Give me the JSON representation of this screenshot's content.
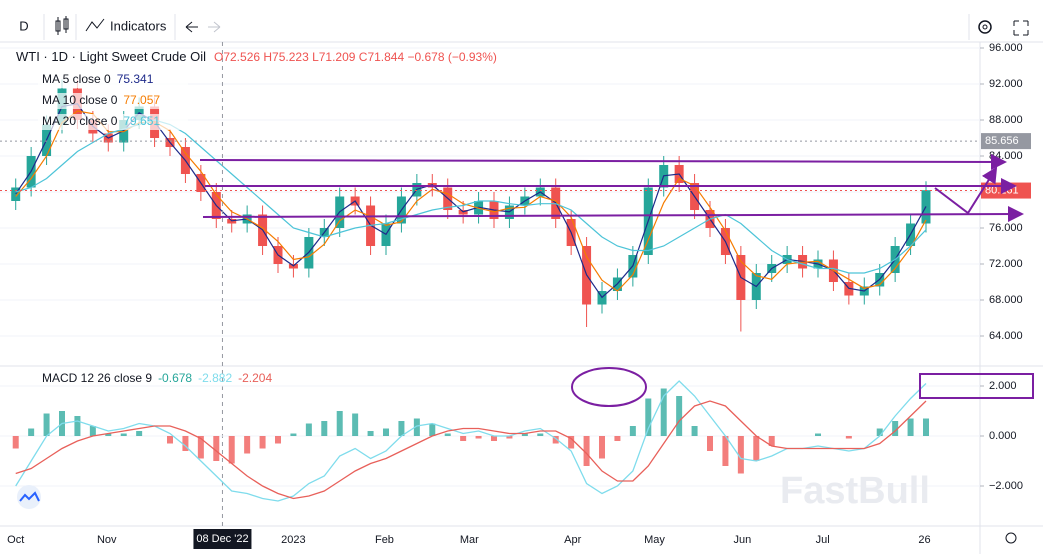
{
  "toolbar": {
    "interval": "D",
    "indicators": "Indicators"
  },
  "watermark": "FastBull",
  "chart_data": [
    {
      "type": "candlestick",
      "title": "WTI · 1D · Light Sweet Crude Oil",
      "ohlc_label": "O72.526 H75.223 L71.209 C71.844 −0.678 (−0.93%)",
      "up_color": "#26a69a",
      "down_color": "#ef5350",
      "x": [
        0,
        1,
        2,
        3,
        4,
        5,
        6,
        7,
        8,
        9,
        10,
        11,
        12,
        13,
        14,
        15,
        16,
        17,
        18,
        19,
        20,
        21,
        22,
        23,
        24,
        25,
        26,
        27,
        28,
        29,
        30,
        31,
        32,
        33,
        34,
        35,
        36,
        37,
        38,
        39,
        40,
        41,
        42,
        43,
        44,
        45,
        46,
        47,
        48,
        49,
        50,
        51,
        52,
        53,
        54,
        55,
        56,
        57,
        58,
        59
      ],
      "open": [
        79,
        80.5,
        84,
        87.5,
        91.5,
        88,
        86.5,
        85.5,
        88,
        89.5,
        86,
        85,
        82,
        80,
        77,
        76.5,
        77.5,
        74,
        72,
        71.5,
        75,
        76,
        79.5,
        78.5,
        74,
        76.5,
        79.5,
        81,
        80.5,
        78,
        77.5,
        79,
        77,
        78.5,
        79.5,
        80.5,
        77,
        74,
        67.5,
        69,
        70.5,
        73,
        80.5,
        83,
        81,
        78,
        76,
        73,
        68,
        71,
        72,
        73,
        71.5,
        72.5,
        70,
        68.5,
        69.5,
        71,
        74,
        76.5
      ],
      "high": [
        81.5,
        85,
        88.5,
        92.5,
        92.5,
        89,
        87.5,
        89,
        90.5,
        90.5,
        87,
        86,
        83,
        81,
        78,
        78.5,
        78.5,
        75,
        73,
        76,
        77,
        80.5,
        80.5,
        79.5,
        77.5,
        80.5,
        82,
        82,
        81.5,
        79,
        80,
        80,
        79.5,
        80.5,
        81.5,
        81.5,
        78,
        75,
        70,
        71.5,
        74,
        81.5,
        84,
        84,
        82,
        79,
        77,
        74,
        72,
        73,
        74,
        74,
        73.5,
        73.5,
        71,
        70.5,
        72,
        75,
        77.5,
        81.2
      ],
      "low": [
        78,
        79.5,
        83,
        86.5,
        87,
        85.5,
        84.5,
        84.5,
        87,
        85,
        84,
        81,
        79,
        76,
        75.5,
        75.5,
        73,
        71,
        70.5,
        70.5,
        74,
        75,
        77.5,
        73,
        73,
        75.5,
        78.5,
        79.5,
        77,
        76.5,
        76.5,
        76,
        76,
        77.5,
        78.5,
        76,
        73,
        65,
        66.5,
        68,
        69.5,
        72,
        79.5,
        80,
        77,
        75,
        72,
        64.5,
        67,
        70,
        71,
        70.5,
        70.5,
        69,
        67.5,
        67.5,
        68.5,
        70,
        73,
        75.5
      ],
      "close": [
        80.5,
        84,
        87.5,
        91.5,
        88,
        86.5,
        85.5,
        88,
        89.5,
        86,
        85,
        82,
        80,
        77,
        76.5,
        77.5,
        74,
        72,
        71.5,
        75,
        76,
        79.5,
        78.5,
        74,
        76.5,
        79.5,
        81,
        80.5,
        78,
        77.5,
        79,
        77,
        78.5,
        79.5,
        80.5,
        77,
        74,
        67.5,
        69,
        70.5,
        73,
        80.5,
        83,
        81,
        78,
        76,
        73,
        68,
        71,
        72,
        73,
        71.5,
        72.5,
        70,
        68.5,
        69.5,
        71,
        74,
        76.5,
        80.2
      ],
      "series": [
        {
          "name": "MA 5 close 0",
          "color": "#1e2a8a",
          "crosshair_value": 75.341,
          "values": [
            79.8,
            82.3,
            85.8,
            89.5,
            89.8,
            87.3,
            86,
            86.8,
            88.8,
            87.8,
            85.5,
            83.5,
            81,
            78.5,
            76.8,
            77,
            75.8,
            73,
            71.8,
            73.3,
            75.5,
            77.8,
            79,
            76.3,
            75.3,
            78,
            80.3,
            80.8,
            79.3,
            77.8,
            78.3,
            78,
            77.8,
            79,
            80,
            78.8,
            75.5,
            70.8,
            68.3,
            69.8,
            71.8,
            76.8,
            81.8,
            82,
            79.5,
            77,
            74.5,
            70.5,
            69.5,
            71.5,
            72.5,
            72.3,
            72,
            71.3,
            69.3,
            69,
            70.3,
            72.5,
            75.3,
            78.4
          ]
        },
        {
          "name": "MA 10 close 0",
          "color": "#f57c00",
          "crosshair_value": 77.057,
          "values": [
            79.5,
            81.5,
            84,
            87.7,
            89,
            88.7,
            86.7,
            86.7,
            87.7,
            87.8,
            86.8,
            84.3,
            82.3,
            79.7,
            77.8,
            77,
            76,
            74.5,
            72.5,
            72.8,
            74.2,
            76.8,
            78,
            77.3,
            76.3,
            76.7,
            79,
            80.3,
            79.8,
            78.7,
            78.2,
            77.8,
            78.2,
            78.3,
            79.5,
            79,
            77.2,
            72.8,
            70.2,
            69,
            70.8,
            74.7,
            78.8,
            81.5,
            80.7,
            78.3,
            75.7,
            72.3,
            70.7,
            70.3,
            72,
            72.2,
            72.3,
            71.3,
            70.3,
            69.3,
            69.7,
            71.5,
            73.8,
            76.9
          ]
        },
        {
          "name": "MA 20 close 0",
          "color": "#4dc4d8",
          "crosshair_value": 79.651,
          "values": [
            80,
            80.5,
            81.5,
            83,
            84.5,
            85.5,
            86.5,
            87,
            87.5,
            88,
            87.5,
            86.5,
            85,
            83.5,
            82,
            80.5,
            79,
            77.5,
            76,
            75.5,
            75,
            75.5,
            76,
            76.3,
            76.5,
            77,
            77.5,
            78,
            78.3,
            78.5,
            79,
            79,
            78.7,
            78.5,
            78.7,
            78.7,
            78,
            76.5,
            75,
            74,
            73.5,
            73.5,
            74,
            75,
            76,
            77,
            77.5,
            76.5,
            75,
            73.5,
            72.5,
            72,
            71.5,
            71.5,
            71,
            71,
            71.5,
            72.5,
            74,
            75.8
          ]
        }
      ],
      "price_lines": [
        {
          "value": 85.656,
          "color": "#9598a1"
        },
        {
          "value": 80.161,
          "color": "#ef5350"
        }
      ],
      "crosshair": {
        "x": 13.4,
        "label": "08 Dec '22"
      },
      "xlim": [
        -0.5,
        62.5
      ],
      "xticks": [
        {
          "value": 0,
          "label": "Oct"
        },
        {
          "value": 5.9,
          "label": "Nov"
        },
        {
          "value": 18,
          "label": "2023"
        },
        {
          "value": 23.9,
          "label": "Feb"
        },
        {
          "value": 29.4,
          "label": "Mar"
        },
        {
          "value": 36.1,
          "label": "Apr"
        },
        {
          "value": 41.4,
          "label": "May"
        },
        {
          "value": 47.1,
          "label": "Jun"
        },
        {
          "value": 52.3,
          "label": "Jul"
        },
        {
          "value": 58.9,
          "label": "26"
        }
      ],
      "ylim": [
        60.778,
        96.667
      ],
      "yticks": [
        {
          "value": 64,
          "label": "64.000"
        },
        {
          "value": 68,
          "label": "68.000"
        },
        {
          "value": 72,
          "label": "72.000"
        },
        {
          "value": 76,
          "label": "76.000"
        },
        {
          "value": 80,
          "label": "80.000"
        },
        {
          "value": 84,
          "label": "84.000"
        },
        {
          "value": 88,
          "label": "88.000"
        },
        {
          "value": 92,
          "label": "92.000"
        },
        {
          "value": 96,
          "label": "96.000"
        }
      ],
      "grid": true
    },
    {
      "type": "macd",
      "title": "MACD 12 26 close 9",
      "histogram": {
        "crosshair_value": -0.678,
        "up_color": "#26a69a",
        "down_color": "#ef5350",
        "values": [
          -0.5,
          0.3,
          0.9,
          1,
          0.8,
          0.4,
          0.1,
          0.1,
          0.2,
          0,
          -0.3,
          -0.6,
          -0.9,
          -1,
          -1.1,
          -0.7,
          -0.5,
          -0.3,
          0.1,
          0.5,
          0.6,
          1,
          0.9,
          0.2,
          0.3,
          0.6,
          0.7,
          0.5,
          0.1,
          -0.2,
          -0.1,
          -0.2,
          -0.1,
          0.1,
          0.1,
          -0.3,
          -0.5,
          -1.2,
          -0.9,
          -0.2,
          0.4,
          1.5,
          1.9,
          1.6,
          0.4,
          -0.6,
          -1.2,
          -1.5,
          -1,
          -0.4,
          0,
          0,
          0.1,
          0,
          -0.1,
          0,
          0.3,
          0.6,
          0.7,
          0.7
        ]
      },
      "series": [
        {
          "color": "#7fdcec",
          "crosshair_value": -2.882,
          "values": [
            -2,
            -1,
            0,
            0.5,
            0.6,
            0.4,
            0.2,
            0.3,
            0.5,
            0.4,
            0.1,
            -0.4,
            -1,
            -1.6,
            -2.2,
            -2.3,
            -2.5,
            -2.6,
            -2.4,
            -1.9,
            -1.6,
            -0.8,
            -0.5,
            -0.9,
            -0.6,
            0,
            0.4,
            0.5,
            0.3,
            0.1,
            0.2,
            0,
            0,
            0.2,
            0.3,
            -0.1,
            -0.6,
            -1.9,
            -2.3,
            -2,
            -1.4,
            0.3,
            1.6,
            2.2,
            1.6,
            0.8,
            0,
            -0.9,
            -1,
            -0.8,
            -0.5,
            -0.5,
            -0.4,
            -0.5,
            -0.6,
            -0.5,
            0,
            0.8,
            1.5,
            2.1
          ]
        },
        {
          "color": "#e8605a",
          "crosshair_value": -2.204,
          "values": [
            -1.5,
            -1.3,
            -0.9,
            -0.5,
            -0.2,
            0,
            0.1,
            0.2,
            0.3,
            0.4,
            0.4,
            0.2,
            -0.1,
            -0.6,
            -1.1,
            -1.6,
            -2,
            -2.3,
            -2.5,
            -2.4,
            -2.2,
            -1.8,
            -1.4,
            -1.1,
            -0.9,
            -0.6,
            -0.3,
            0,
            0.2,
            0.3,
            0.3,
            0.2,
            0.1,
            0.1,
            0.2,
            0.2,
            -0.1,
            -0.7,
            -1.4,
            -1.8,
            -1.8,
            -1.2,
            -0.3,
            0.6,
            1.2,
            1.4,
            1.2,
            0.6,
            0,
            -0.4,
            -0.5,
            -0.5,
            -0.5,
            -0.5,
            -0.5,
            -0.5,
            -0.3,
            0.2,
            0.8,
            1.4
          ]
        }
      ],
      "ylim": [
        -3.56,
        2.72
      ],
      "yticks": [
        {
          "value": -2,
          "label": "−2.000"
        },
        {
          "value": 0,
          "label": "0.000"
        },
        {
          "value": 2,
          "label": "2.000"
        }
      ],
      "grid": true
    }
  ]
}
